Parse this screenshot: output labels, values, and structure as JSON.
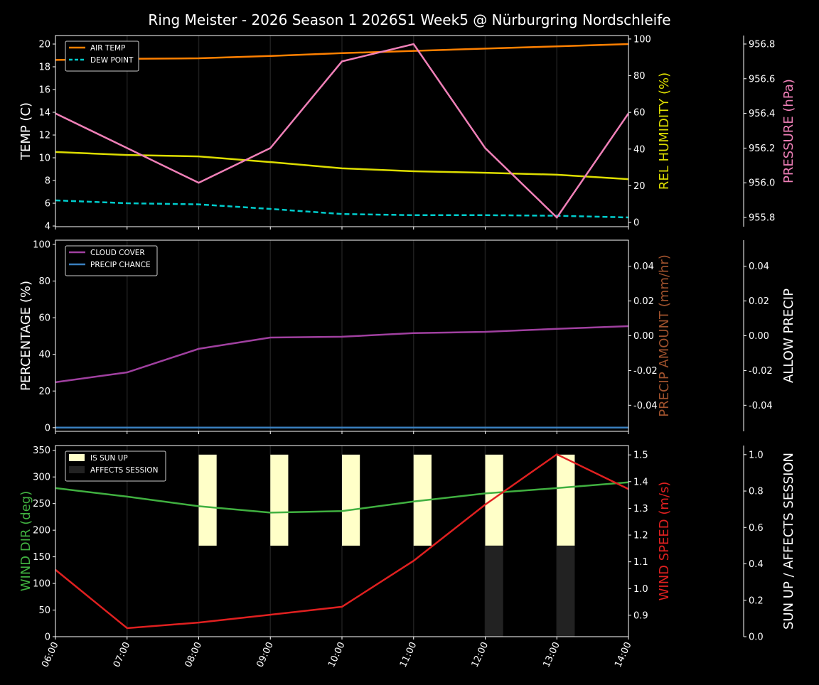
{
  "title": "Ring Meister - 2026 Season 1 2026S1 Week5 @ Nürburgring Nordschleife",
  "chart_data": [
    {
      "type": "line",
      "x": [
        "06:00",
        "07:00",
        "08:00",
        "09:00",
        "10:00",
        "11:00",
        "12:00",
        "13:00",
        "14:00"
      ],
      "axes": [
        {
          "label": "TEMP (C)",
          "side": "left",
          "color": "#ffffff",
          "ylim": [
            3.94,
            20.75
          ],
          "ticks": [
            4,
            6,
            8,
            10,
            12,
            14,
            16,
            18,
            20
          ]
        },
        {
          "label": "REL HUMIDITY (%)",
          "side": "right",
          "color": "#dddd00",
          "ylim": [
            -2.3,
            101.9
          ],
          "ticks": [
            0,
            20,
            40,
            60,
            80,
            100
          ]
        },
        {
          "label": "PRESSURE (hPa)",
          "side": "right-outer",
          "color": "#f080b8",
          "ylim": [
            955.747,
            956.849
          ],
          "ticks": [
            955.8,
            956.0,
            956.2,
            956.4,
            956.6,
            956.8
          ],
          "tick_decimals": 1
        }
      ],
      "series": [
        {
          "name": "AIR TEMP",
          "axis": 0,
          "color": "#ff8000",
          "dash": false,
          "legend": true,
          "values": [
            18.6,
            18.7,
            18.75,
            18.95,
            19.2,
            19.4,
            19.6,
            19.8,
            20.0
          ]
        },
        {
          "name": "DEW POINT",
          "axis": 0,
          "color": "#00cccc",
          "dash": true,
          "legend": true,
          "values": [
            6.25,
            6.0,
            5.9,
            5.5,
            5.05,
            4.95,
            4.95,
            4.9,
            4.75
          ]
        },
        {
          "axis": 1,
          "color": "#dddd00",
          "dash": false,
          "legend": false,
          "values": [
            38.4,
            36.8,
            36.0,
            32.9,
            29.5,
            27.9,
            27.1,
            26.0,
            23.6
          ]
        },
        {
          "axis": 2,
          "color": "#f080b8",
          "dash": false,
          "legend": false,
          "values": [
            956.4,
            956.2,
            956.0,
            956.2,
            956.7,
            956.8,
            956.2,
            955.8,
            956.4
          ]
        }
      ],
      "legend": "top-left",
      "grid": "vertical"
    },
    {
      "type": "line",
      "x": [
        "06:00",
        "07:00",
        "08:00",
        "09:00",
        "10:00",
        "11:00",
        "12:00",
        "13:00",
        "14:00"
      ],
      "axes": [
        {
          "label": "PERCENTAGE (%)",
          "side": "left",
          "color": "#ffffff",
          "ylim": [
            -2,
            102.3
          ],
          "ticks": [
            0,
            20,
            40,
            60,
            80,
            100
          ]
        },
        {
          "label": "PRECIP AMOUNT (mm/hr)",
          "side": "right",
          "color": "#a0522d",
          "ylim": [
            -0.055,
            0.055
          ],
          "ticks": [
            -0.04,
            -0.02,
            0.0,
            0.02,
            0.04
          ],
          "tick_decimals": 2
        },
        {
          "label": "ALLOW PRECIP",
          "side": "right-outer",
          "color": "#ffffff",
          "ylim": [
            -0.055,
            0.055
          ],
          "ticks": [
            -0.04,
            -0.02,
            0.0,
            0.02,
            0.04
          ],
          "tick_decimals": 2
        }
      ],
      "series": [
        {
          "name": "CLOUD COVER",
          "axis": 0,
          "color": "#a040a0",
          "dash": false,
          "legend": true,
          "values": [
            24.8,
            30.2,
            43.0,
            49.2,
            49.6,
            51.6,
            52.3,
            53.9,
            55.4
          ]
        },
        {
          "name": "PRECIP CHANCE",
          "axis": 0,
          "color": "#3a80c0",
          "dash": false,
          "legend": true,
          "values": [
            0,
            0,
            0,
            0,
            0,
            0,
            0,
            0,
            0
          ]
        }
      ],
      "legend": "top-left",
      "grid": "vertical"
    },
    {
      "type": "line",
      "x": [
        "06:00",
        "07:00",
        "08:00",
        "09:00",
        "10:00",
        "11:00",
        "12:00",
        "13:00",
        "14:00"
      ],
      "axes": [
        {
          "label": "WIND DIR (deg)",
          "side": "left",
          "color": "#40b040",
          "ylim": [
            0,
            359
          ],
          "ticks": [
            0,
            50,
            100,
            150,
            200,
            250,
            300,
            350
          ]
        },
        {
          "label": "WIND SPEED (m/s)",
          "side": "right",
          "color": "#e02020",
          "ylim": [
            0.82,
            1.535
          ],
          "ticks": [
            0.9,
            1.0,
            1.1,
            1.2,
            1.3,
            1.4,
            1.5
          ],
          "tick_decimals": 1
        },
        {
          "label": "SUN UP / AFFECTS SESSION",
          "side": "right-outer",
          "color": "#ffffff",
          "ylim": [
            0,
            1.05
          ],
          "ticks": [
            0.0,
            0.2,
            0.4,
            0.6,
            0.8,
            1.0
          ],
          "tick_decimals": 1
        }
      ],
      "bars": [
        {
          "name": "IS SUN UP",
          "axis": 2,
          "color": "#ffffc8",
          "base": 0.5,
          "height": 0.5,
          "values": [
            0,
            0,
            1,
            1,
            1,
            1,
            1,
            1,
            0
          ]
        },
        {
          "name": "AFFECTS SESSION",
          "axis": 2,
          "color": "#222222",
          "base": 0,
          "height": 0.5,
          "values": [
            0,
            0,
            0,
            0,
            0,
            0,
            1,
            1,
            0
          ]
        }
      ],
      "series": [
        {
          "axis": 0,
          "color": "#40b040",
          "dash": false,
          "legend": false,
          "values": [
            279,
            263,
            245,
            233,
            236,
            254,
            269,
            279,
            290
          ]
        },
        {
          "axis": 1,
          "color": "#e02020",
          "dash": false,
          "legend": false,
          "values": [
            1.07,
            0.852,
            0.873,
            0.902,
            0.932,
            1.104,
            1.314,
            1.502,
            1.372
          ]
        }
      ],
      "legend": "top-left",
      "grid": "vertical"
    }
  ]
}
